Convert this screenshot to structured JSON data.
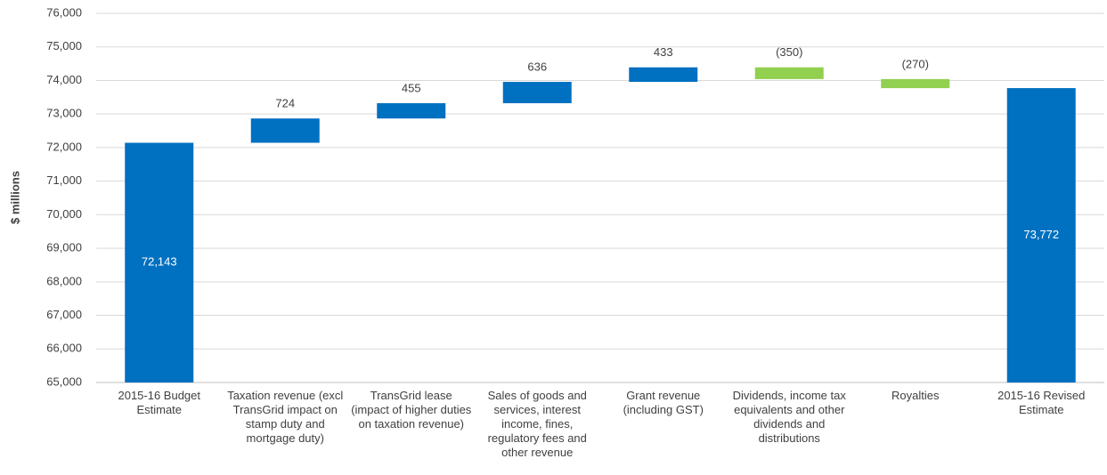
{
  "chart_data": {
    "type": "waterfall",
    "y_axis_label": "$ millions",
    "categories": [
      "2015-16 Budget Estimate",
      "Taxation revenue (excl TransGrid impact on stamp duty and mortgage duty)",
      "TransGrid lease (impact of higher duties on taxation revenue)",
      "Sales of goods and services, interest income, fines, regulatory fees and other revenue",
      "Grant revenue (including GST)",
      "Dividends, income tax equivalents and other dividends and distributions",
      "Royalties",
      "2015-16 Revised Estimate"
    ],
    "values": [
      72143,
      724,
      455,
      636,
      433,
      -350,
      -270,
      73772
    ],
    "value_labels": [
      "72,143",
      "724",
      "455",
      "636",
      "433",
      "(350)",
      "(270)",
      "73,772"
    ],
    "is_total": [
      true,
      false,
      false,
      false,
      false,
      false,
      false,
      true
    ],
    "colors": {
      "total": "#0070c0",
      "increase": "#0070c0",
      "decrease": "#92d050"
    },
    "ylim": [
      65000,
      76000
    ],
    "yticks": [
      {
        "value": 65000,
        "label": "65,000"
      },
      {
        "value": 66000,
        "label": "66,000"
      },
      {
        "value": 67000,
        "label": "67,000"
      },
      {
        "value": 68000,
        "label": "68,000"
      },
      {
        "value": 69000,
        "label": "69,000"
      },
      {
        "value": 70000,
        "label": "70,000"
      },
      {
        "value": 71000,
        "label": "71,000"
      },
      {
        "value": 72000,
        "label": "72,000"
      },
      {
        "value": 73000,
        "label": "73,000"
      },
      {
        "value": 74000,
        "label": "74,000"
      },
      {
        "value": 75000,
        "label": "75,000"
      },
      {
        "value": 76000,
        "label": "76,000"
      }
    ],
    "grid": true
  }
}
